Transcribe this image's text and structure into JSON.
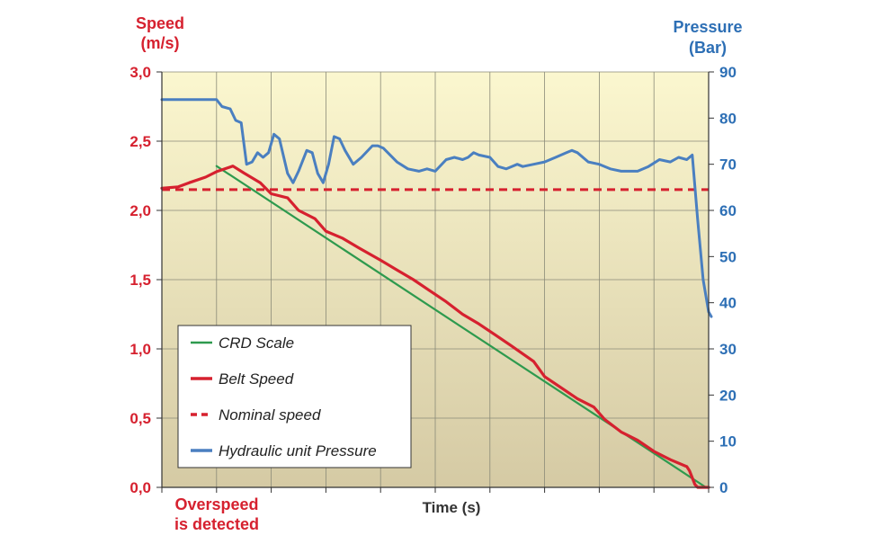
{
  "chart_data": {
    "type": "line",
    "colors": {
      "speed_axis": "#d6212f",
      "pressure_axis": "#2d6fb5",
      "crd_scale": "#2e9a4e",
      "belt_speed": "#d6212f",
      "nominal_speed": "#d6212f",
      "hydraulic_pressure": "#4a7fc0"
    },
    "left_axis": {
      "title_line1": "Speed",
      "title_line2": "(m/s)",
      "ylim": [
        0,
        3
      ],
      "ticks": [
        {
          "v": 0,
          "label": "0,0"
        },
        {
          "v": 0.5,
          "label": "0,5"
        },
        {
          "v": 1.0,
          "label": "1,0"
        },
        {
          "v": 1.5,
          "label": "1,5"
        },
        {
          "v": 2.0,
          "label": "2,0"
        },
        {
          "v": 2.5,
          "label": "2,5"
        },
        {
          "v": 3.0,
          "label": "3,0"
        }
      ]
    },
    "right_axis": {
      "title_line1": "Pressure",
      "title_line2": "(Bar)",
      "ylim": [
        0,
        90
      ],
      "ticks": [
        {
          "v": 0,
          "label": "0"
        },
        {
          "v": 10,
          "label": "10"
        },
        {
          "v": 20,
          "label": "20"
        },
        {
          "v": 30,
          "label": "30"
        },
        {
          "v": 40,
          "label": "40"
        },
        {
          "v": 50,
          "label": "50"
        },
        {
          "v": 60,
          "label": "60"
        },
        {
          "v": 70,
          "label": "70"
        },
        {
          "v": 80,
          "label": "80"
        },
        {
          "v": 90,
          "label": "90"
        }
      ]
    },
    "xlabel": "Time (s)",
    "xlim": [
      0,
      10
    ],
    "grid": true,
    "legend_position": "bottom-left",
    "annotation": {
      "line1": "Overspeed",
      "line2": "is detected"
    },
    "series": [
      {
        "key": "crd_scale",
        "name": "CRD Scale",
        "axis": "left",
        "style": "solid",
        "points": [
          [
            1.0,
            2.32
          ],
          [
            9.95,
            0.0
          ]
        ]
      },
      {
        "key": "belt_speed",
        "name": "Belt Speed",
        "axis": "left",
        "style": "solid",
        "points": [
          [
            0.0,
            2.16
          ],
          [
            0.3,
            2.17
          ],
          [
            0.5,
            2.2
          ],
          [
            0.8,
            2.24
          ],
          [
            1.0,
            2.28
          ],
          [
            1.3,
            2.32
          ],
          [
            1.5,
            2.27
          ],
          [
            1.8,
            2.2
          ],
          [
            2.0,
            2.12
          ],
          [
            2.3,
            2.09
          ],
          [
            2.5,
            2.0
          ],
          [
            2.8,
            1.94
          ],
          [
            3.0,
            1.85
          ],
          [
            3.3,
            1.8
          ],
          [
            3.6,
            1.73
          ],
          [
            4.0,
            1.64
          ],
          [
            4.3,
            1.57
          ],
          [
            4.6,
            1.5
          ],
          [
            4.9,
            1.42
          ],
          [
            5.2,
            1.34
          ],
          [
            5.5,
            1.25
          ],
          [
            5.8,
            1.18
          ],
          [
            6.1,
            1.1
          ],
          [
            6.4,
            1.02
          ],
          [
            6.8,
            0.91
          ],
          [
            7.0,
            0.8
          ],
          [
            7.3,
            0.72
          ],
          [
            7.6,
            0.64
          ],
          [
            7.9,
            0.58
          ],
          [
            8.1,
            0.49
          ],
          [
            8.4,
            0.4
          ],
          [
            8.7,
            0.34
          ],
          [
            9.0,
            0.26
          ],
          [
            9.3,
            0.2
          ],
          [
            9.6,
            0.15
          ],
          [
            9.65,
            0.12
          ],
          [
            9.75,
            0.02
          ],
          [
            9.8,
            0.0
          ],
          [
            10.0,
            0.0
          ]
        ]
      },
      {
        "key": "nominal_speed",
        "name": "Nominal speed",
        "axis": "left",
        "style": "dashed",
        "points": [
          [
            0.0,
            2.15
          ],
          [
            10.0,
            2.15
          ]
        ]
      },
      {
        "key": "hydraulic_pressure",
        "name": "Hydraulic unit Pressure",
        "axis": "right",
        "style": "solid",
        "points": [
          [
            0.0,
            84
          ],
          [
            1.0,
            84
          ],
          [
            1.1,
            82.5
          ],
          [
            1.25,
            82
          ],
          [
            1.35,
            79.5
          ],
          [
            1.45,
            79
          ],
          [
            1.55,
            70
          ],
          [
            1.65,
            70.5
          ],
          [
            1.75,
            72.5
          ],
          [
            1.85,
            71.5
          ],
          [
            1.95,
            72.5
          ],
          [
            2.05,
            76.5
          ],
          [
            2.15,
            75.5
          ],
          [
            2.3,
            68
          ],
          [
            2.4,
            66
          ],
          [
            2.5,
            68.5
          ],
          [
            2.65,
            73
          ],
          [
            2.75,
            72.5
          ],
          [
            2.85,
            68
          ],
          [
            2.95,
            66
          ],
          [
            3.05,
            70
          ],
          [
            3.15,
            76
          ],
          [
            3.25,
            75.5
          ],
          [
            3.35,
            73
          ],
          [
            3.5,
            70
          ],
          [
            3.65,
            71.5
          ],
          [
            3.85,
            74
          ],
          [
            3.95,
            74
          ],
          [
            4.05,
            73.5
          ],
          [
            4.3,
            70.5
          ],
          [
            4.5,
            69
          ],
          [
            4.7,
            68.5
          ],
          [
            4.85,
            69
          ],
          [
            5.0,
            68.5
          ],
          [
            5.2,
            71
          ],
          [
            5.35,
            71.5
          ],
          [
            5.5,
            71
          ],
          [
            5.6,
            71.5
          ],
          [
            5.7,
            72.5
          ],
          [
            5.8,
            72
          ],
          [
            6.0,
            71.5
          ],
          [
            6.15,
            69.5
          ],
          [
            6.3,
            69
          ],
          [
            6.4,
            69.5
          ],
          [
            6.5,
            70
          ],
          [
            6.6,
            69.5
          ],
          [
            6.8,
            70
          ],
          [
            7.0,
            70.5
          ],
          [
            7.2,
            71.5
          ],
          [
            7.4,
            72.5
          ],
          [
            7.5,
            73
          ],
          [
            7.6,
            72.5
          ],
          [
            7.8,
            70.5
          ],
          [
            8.0,
            70
          ],
          [
            8.2,
            69
          ],
          [
            8.4,
            68.5
          ],
          [
            8.7,
            68.5
          ],
          [
            8.9,
            69.5
          ],
          [
            9.1,
            71
          ],
          [
            9.3,
            70.5
          ],
          [
            9.45,
            71.5
          ],
          [
            9.6,
            71
          ],
          [
            9.7,
            72
          ],
          [
            9.8,
            58
          ],
          [
            9.9,
            45
          ],
          [
            10.0,
            38
          ],
          [
            10.05,
            37
          ]
        ]
      }
    ]
  }
}
